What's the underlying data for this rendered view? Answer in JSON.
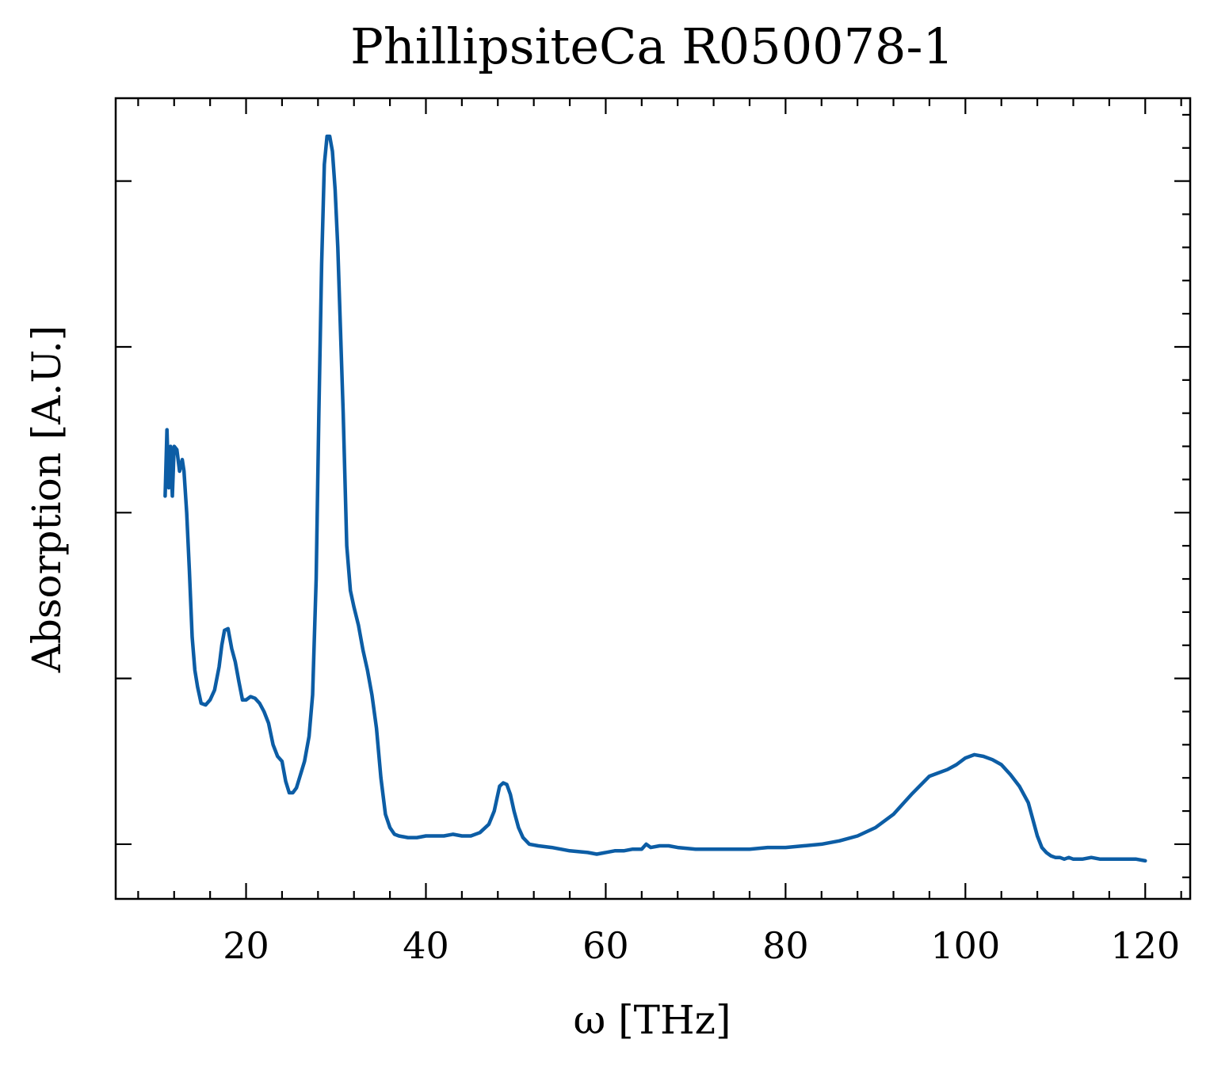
{
  "chart_data": {
    "type": "line",
    "title": "PhillipsiteCa R050078-1",
    "xlabel": "ω [THz]",
    "ylabel": "Absorption [A.U.]",
    "xlim": [
      5.5,
      125
    ],
    "ylim": [
      -0.033,
      0.45
    ],
    "x_ticks": [
      20,
      40,
      60,
      80,
      100,
      120
    ],
    "x_minor_step": 4,
    "y_ticks": [
      0.0,
      0.1,
      0.2,
      0.3,
      0.4
    ],
    "y_minor_step": 0.02,
    "y_tick_labels_shown": false,
    "grid": false,
    "legend": "none",
    "series_color": "#0C5DA5",
    "series": [
      {
        "x": [
          11.0,
          11.2,
          11.4,
          11.6,
          11.8,
          12.0,
          12.3,
          12.6,
          12.9,
          13.1,
          13.4,
          13.7,
          14.0,
          14.3,
          14.6,
          15.0,
          15.5,
          16.0,
          16.5,
          17.0,
          17.3,
          17.6,
          18.0,
          18.4,
          18.8,
          19.2,
          19.6,
          20.0,
          20.5,
          21.0,
          21.5,
          22.0,
          22.5,
          23.0,
          23.5,
          24.0,
          24.4,
          24.8,
          25.2,
          25.6,
          26.0,
          26.5,
          27.0,
          27.4,
          27.8,
          28.1,
          28.4,
          28.7,
          29.0,
          29.3,
          29.6,
          29.9,
          30.2,
          30.5,
          30.8,
          31.2,
          31.6,
          32.0,
          32.5,
          33.0,
          33.5,
          34.0,
          34.5,
          35.0,
          35.5,
          36.0,
          36.5,
          37.0,
          38.0,
          39.0,
          40.0,
          41.0,
          42.0,
          43.0,
          44.0,
          45.0,
          46.0,
          47.0,
          47.6,
          48.2,
          48.6,
          49.0,
          49.4,
          49.8,
          50.3,
          50.8,
          51.5,
          52.5,
          54.0,
          56.0,
          58.0,
          59.0,
          60.0,
          61.0,
          62.0,
          63.0,
          64.0,
          64.5,
          65.0,
          66.0,
          67.0,
          68.0,
          70.0,
          72.0,
          74.0,
          76.0,
          78.0,
          80.0,
          82.0,
          84.0,
          86.0,
          88.0,
          90.0,
          92.0,
          94.0,
          96.0,
          97.0,
          98.0,
          99.0,
          100.0,
          101.0,
          102.0,
          103.0,
          104.0,
          105.0,
          106.0,
          107.0,
          107.5,
          108.0,
          108.5,
          109.0,
          109.5,
          110.0,
          110.5,
          111.0,
          111.5,
          112.0,
          113.0,
          114.0,
          115.0,
          116.0,
          117.0,
          118.0,
          119.0,
          120.0
        ],
        "y": [
          0.21,
          0.25,
          0.215,
          0.24,
          0.21,
          0.24,
          0.238,
          0.225,
          0.232,
          0.225,
          0.2,
          0.165,
          0.125,
          0.105,
          0.095,
          0.085,
          0.084,
          0.087,
          0.093,
          0.107,
          0.12,
          0.129,
          0.13,
          0.118,
          0.11,
          0.098,
          0.087,
          0.087,
          0.089,
          0.088,
          0.085,
          0.08,
          0.073,
          0.06,
          0.053,
          0.05,
          0.038,
          0.031,
          0.031,
          0.034,
          0.041,
          0.05,
          0.065,
          0.09,
          0.16,
          0.26,
          0.35,
          0.41,
          0.427,
          0.427,
          0.418,
          0.395,
          0.36,
          0.31,
          0.26,
          0.18,
          0.153,
          0.143,
          0.132,
          0.117,
          0.105,
          0.09,
          0.07,
          0.04,
          0.018,
          0.01,
          0.006,
          0.005,
          0.004,
          0.004,
          0.005,
          0.005,
          0.005,
          0.006,
          0.005,
          0.005,
          0.007,
          0.012,
          0.02,
          0.035,
          0.037,
          0.036,
          0.03,
          0.02,
          0.01,
          0.004,
          0.0,
          -0.001,
          -0.002,
          -0.004,
          -0.005,
          -0.006,
          -0.005,
          -0.004,
          -0.004,
          -0.003,
          -0.003,
          0.0,
          -0.002,
          -0.001,
          -0.001,
          -0.002,
          -0.003,
          -0.003,
          -0.003,
          -0.003,
          -0.002,
          -0.002,
          -0.001,
          0.0,
          0.002,
          0.005,
          0.01,
          0.018,
          0.03,
          0.041,
          0.043,
          0.045,
          0.048,
          0.052,
          0.054,
          0.053,
          0.051,
          0.048,
          0.042,
          0.035,
          0.025,
          0.015,
          0.005,
          -0.002,
          -0.005,
          -0.007,
          -0.008,
          -0.008,
          -0.009,
          -0.008,
          -0.009,
          -0.009,
          -0.008,
          -0.009,
          -0.009,
          -0.009,
          -0.009,
          -0.009,
          -0.01
        ]
      }
    ]
  }
}
